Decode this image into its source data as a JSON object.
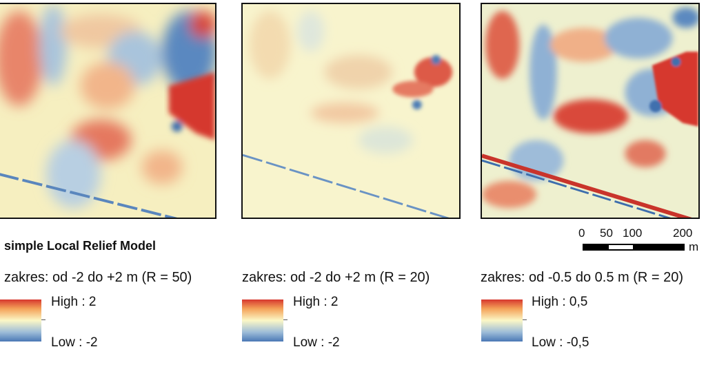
{
  "title": "simple Local Relief Model",
  "panels": [
    {
      "range_text": "zakres: od -2 do +2 m (R = 50)",
      "high": "High : 2",
      "low": "Low : -2"
    },
    {
      "range_text": "zakres: od -2 do +2 m (R = 20)",
      "high": "High : 2",
      "low": "Low : -2"
    },
    {
      "range_text": "zakres: od -0.5 do 0.5 m (R = 20)",
      "high": "High : 0,5",
      "low": "Low : -0,5"
    }
  ],
  "scale_bar": {
    "ticks": [
      "0",
      "50",
      "100",
      "200"
    ],
    "unit": "m"
  },
  "colors": {
    "high": "#d7372e",
    "mid": "#fbf7c6",
    "low": "#4a78b5"
  }
}
